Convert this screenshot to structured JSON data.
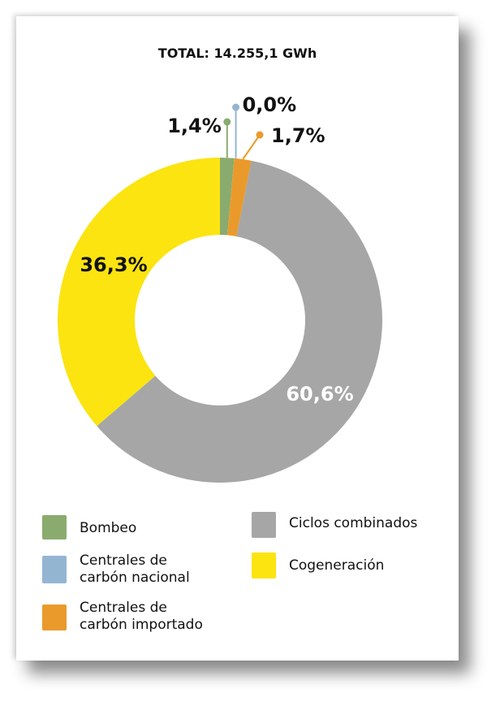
{
  "chart_data": {
    "type": "pie",
    "title": "TOTAL: 14.255,1 GWh",
    "categories": [
      "Bombeo",
      "Centrales de carbón nacional",
      "Centrales de carbón importado",
      "Ciclos combinados",
      "Cogeneración"
    ],
    "values": [
      1.4,
      0.0,
      1.7,
      60.6,
      36.3
    ],
    "value_labels": [
      "1,4%",
      "0,0%",
      "1,7%",
      "60,6%",
      "36,3%"
    ],
    "colors": [
      "#8aab6e",
      "#94b5d2",
      "#ea9a2b",
      "#a6a6a6",
      "#fbe410"
    ],
    "donut": true,
    "legend_position": "bottom"
  }
}
